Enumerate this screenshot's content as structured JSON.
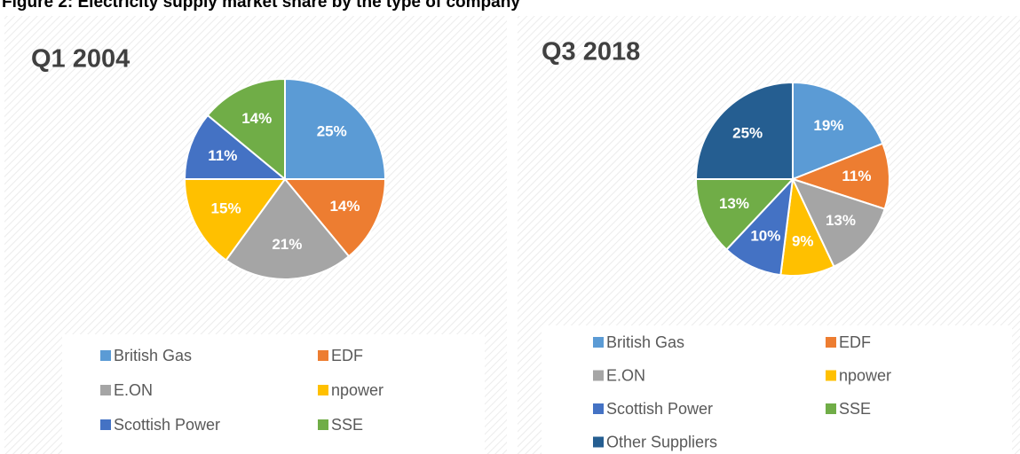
{
  "title": "Figure 2: Electricity supply market share by the type of company",
  "chart_data": [
    {
      "type": "pie",
      "title": "Q1 2004",
      "categories": [
        "British Gas",
        "EDF",
        "E.ON",
        "npower",
        "Scottish Power",
        "SSE"
      ],
      "values": [
        25,
        14,
        21,
        15,
        11,
        14
      ],
      "value_labels": [
        "25%",
        "14%",
        "21%",
        "15%",
        "11%",
        "14%"
      ],
      "colors": [
        "#5b9bd5",
        "#ed7d31",
        "#a5a5a5",
        "#ffc000",
        "#4472c4",
        "#70ad47"
      ]
    },
    {
      "type": "pie",
      "title": "Q3 2018",
      "categories": [
        "British Gas",
        "EDF",
        "E.ON",
        "npower",
        "Scottish Power",
        "SSE",
        "Other Suppliers"
      ],
      "values": [
        19,
        11,
        13,
        9,
        10,
        13,
        25
      ],
      "value_labels": [
        "19%",
        "11%",
        "13%",
        "9%",
        "10%",
        "13%",
        "25%"
      ],
      "colors": [
        "#5b9bd5",
        "#ed7d31",
        "#a5a5a5",
        "#ffc000",
        "#4472c4",
        "#70ad47",
        "#255e91"
      ]
    }
  ]
}
